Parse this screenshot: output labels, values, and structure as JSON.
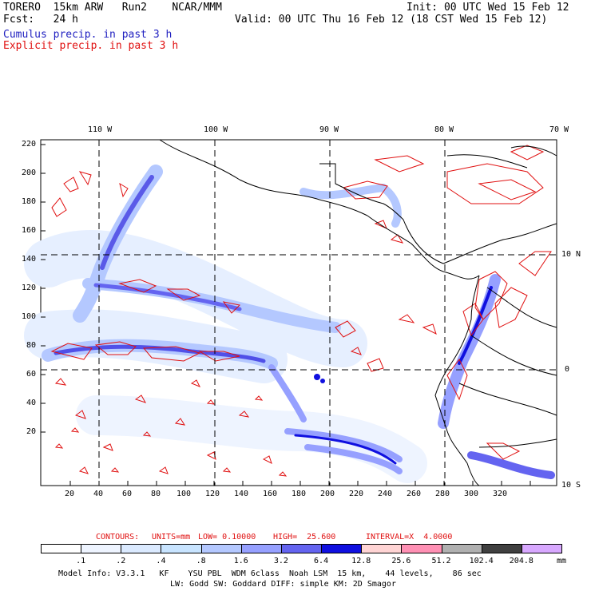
{
  "header": {
    "model_line": "TORERO  15km ARW   Run2    NCAR/MMM",
    "init": "Init: 00 UTC Wed 15 Feb 12",
    "fcst": "Fcst:   24 h",
    "valid": "Valid: 00 UTC Thu 16 Feb 12 (18 CST Wed 15 Feb 12)",
    "legend_blue": "Cumulus precip. in past 3 h",
    "legend_red": "Explicit precip. in past 3 h"
  },
  "map": {
    "top_lon_labels": [
      "110 W",
      "100 W",
      "90 W",
      "80 W",
      "70 W"
    ],
    "right_lat_labels": [
      "10 N",
      "0",
      "10 S"
    ],
    "y_ticks": [
      "220",
      "200",
      "180",
      "160",
      "140",
      "120",
      "100",
      "80",
      "60",
      "40",
      "20"
    ],
    "x_ticks": [
      "20",
      "40",
      "60",
      "80",
      "100",
      "120",
      "140",
      "160",
      "180",
      "200",
      "220",
      "240",
      "260",
      "280",
      "300",
      "320"
    ],
    "colors": {
      "coastline": "#000000",
      "explicit_contour": "#e01010",
      "cumulus_shading": "#3030e0"
    }
  },
  "contour_info": {
    "contours": "CONTOURS:",
    "units": "UNITS=mm",
    "low": "LOW= 0.10000",
    "high": "HIGH=  25.600",
    "interval": "INTERVAL=X  4.0000"
  },
  "colorbar": {
    "labels": [
      ".1",
      ".2",
      ".4",
      ".8",
      "1.6",
      "3.2",
      "6.4",
      "12.8",
      "25.6",
      "51.2",
      "102.4",
      "204.8"
    ],
    "unit": "mm",
    "colors": [
      "#ffffff",
      "#eef4ff",
      "#dbeaff",
      "#c8e4ff",
      "#b4c8ff",
      "#96a0ff",
      "#6464f0",
      "#1010e0",
      "#ffd4d4",
      "#ff90b4",
      "#b0b0b0",
      "#404040",
      "#d8a8ff"
    ]
  },
  "footer": {
    "line1": "Model Info: V3.3.1   KF    YSU PBL  WDM 6class  Noah LSM  15 km,    44 levels,    86 sec",
    "line2": "LW: Godd SW: Goddard DIFF: simple KM: 2D Smagor"
  }
}
